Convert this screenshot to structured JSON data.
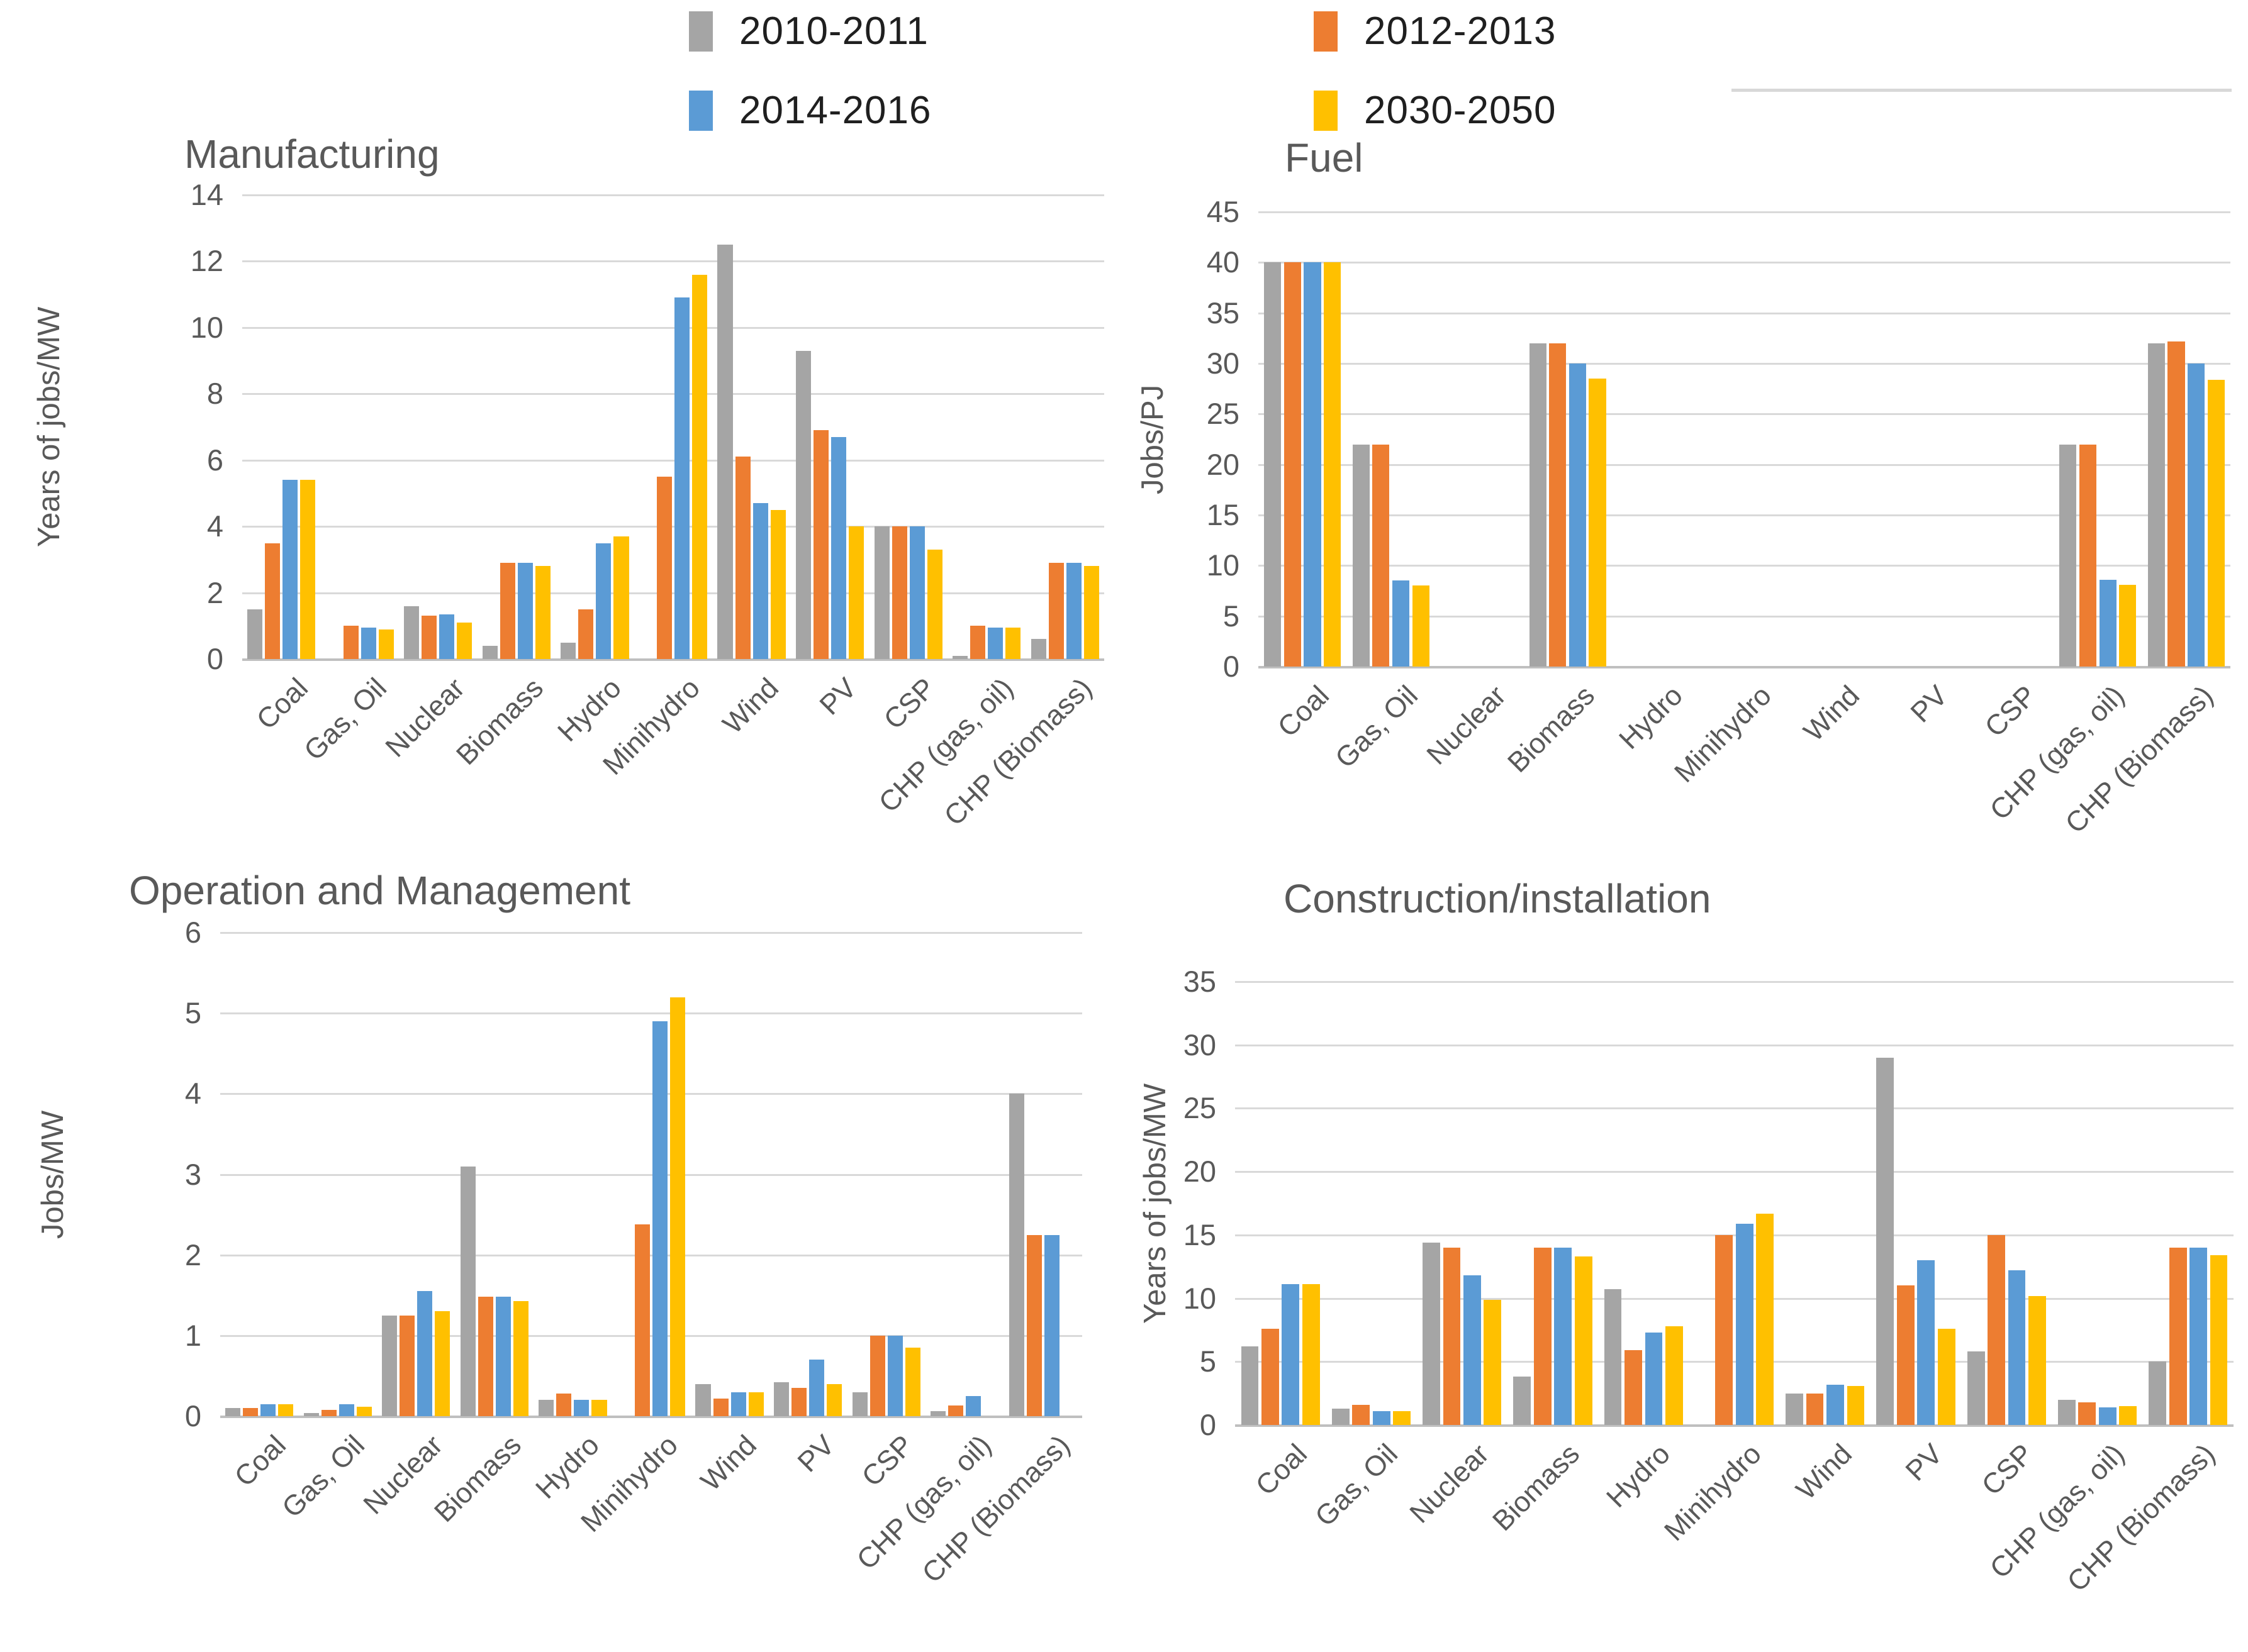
{
  "legend": {
    "items": [
      {
        "label": "2010-2011",
        "color": "#a5a5a5"
      },
      {
        "label": "2012-2013",
        "color": "#ed7d31"
      },
      {
        "label": "2014-2016",
        "color": "#5b9bd5"
      },
      {
        "label": "2030-2050",
        "color": "#ffc000"
      }
    ]
  },
  "chart_data": [
    {
      "type": "bar",
      "title": "Manufacturing",
      "ylabel": "Years of jobs/MW",
      "ylim": [
        0,
        14
      ],
      "ytick_step": 2,
      "grid": true,
      "legend_position": "top",
      "categories": [
        "Coal",
        "Gas, Oil",
        "Nuclear",
        "Biomass",
        "Hydro",
        "Minihydro",
        "Wind",
        "PV",
        "CSP",
        "CHP (gas, oil)",
        "CHP (Biomass)"
      ],
      "series": [
        {
          "name": "2010-2011",
          "color": "#a5a5a5",
          "values": [
            1.5,
            0,
            1.6,
            0.4,
            0.5,
            0,
            12.5,
            9.3,
            4.0,
            0.1,
            0.6
          ]
        },
        {
          "name": "2012-2013",
          "color": "#ed7d31",
          "values": [
            3.5,
            1.0,
            1.3,
            2.9,
            1.5,
            5.5,
            6.1,
            6.9,
            4.0,
            1.0,
            2.9
          ]
        },
        {
          "name": "2014-2016",
          "color": "#5b9bd5",
          "values": [
            5.4,
            0.95,
            1.35,
            2.9,
            3.5,
            10.9,
            4.7,
            6.7,
            4.0,
            0.95,
            2.9
          ]
        },
        {
          "name": "2030-2050",
          "color": "#ffc000",
          "values": [
            5.4,
            0.9,
            1.1,
            2.8,
            3.7,
            11.6,
            4.5,
            4.0,
            3.3,
            0.95,
            2.8
          ]
        }
      ]
    },
    {
      "type": "bar",
      "title": "Fuel",
      "ylabel": "Jobs/PJ",
      "ylim": [
        0,
        45
      ],
      "ytick_step": 5,
      "grid": true,
      "legend_position": "top",
      "categories": [
        "Coal",
        "Gas, Oil",
        "Nuclear",
        "Biomass",
        "Hydro",
        "Minihydro",
        "Wind",
        "PV",
        "CSP",
        "CHP (gas, oil)",
        "CHP (Biomass)"
      ],
      "series": [
        {
          "name": "2010-2011",
          "color": "#a5a5a5",
          "values": [
            40,
            22,
            0,
            32,
            0,
            0,
            0,
            0,
            0,
            22,
            32
          ]
        },
        {
          "name": "2012-2013",
          "color": "#ed7d31",
          "values": [
            40,
            22,
            0,
            32,
            0,
            0,
            0,
            0,
            0,
            22,
            32.2
          ]
        },
        {
          "name": "2014-2016",
          "color": "#5b9bd5",
          "values": [
            40,
            8.5,
            0,
            30,
            0,
            0,
            0,
            0,
            0,
            8.6,
            30
          ]
        },
        {
          "name": "2030-2050",
          "color": "#ffc000",
          "values": [
            40,
            8,
            0,
            28.5,
            0,
            0,
            0,
            0,
            0,
            8.1,
            28.4
          ]
        }
      ]
    },
    {
      "type": "bar",
      "title": "Operation and Management",
      "ylabel": "Jobs/MW",
      "ylim": [
        0,
        6
      ],
      "ytick_step": 1,
      "grid": true,
      "legend_position": "top",
      "categories": [
        "Coal",
        "Gas, Oil",
        "Nuclear",
        "Biomass",
        "Hydro",
        "Minihydro",
        "Wind",
        "PV",
        "CSP",
        "CHP (gas, oil)",
        "CHP (Biomass)"
      ],
      "series": [
        {
          "name": "2010-2011",
          "color": "#a5a5a5",
          "values": [
            0.1,
            0.04,
            1.25,
            3.1,
            0.2,
            0,
            0.4,
            0.42,
            0.3,
            0.06,
            4.0
          ]
        },
        {
          "name": "2012-2013",
          "color": "#ed7d31",
          "values": [
            0.1,
            0.08,
            1.25,
            1.48,
            0.28,
            2.38,
            0.22,
            0.35,
            1.0,
            0.13,
            2.25
          ]
        },
        {
          "name": "2014-2016",
          "color": "#5b9bd5",
          "values": [
            0.15,
            0.15,
            1.55,
            1.48,
            0.2,
            4.9,
            0.3,
            0.7,
            1.0,
            0.25,
            2.25
          ]
        },
        {
          "name": "2030-2050",
          "color": "#ffc000",
          "values": [
            0.15,
            0.12,
            1.3,
            1.43,
            0.2,
            5.2,
            0.3,
            0.4,
            0.85,
            0,
            0
          ]
        }
      ]
    },
    {
      "type": "bar",
      "title": "Construction/installation",
      "ylabel": "Years of jobs/MW",
      "ylim": [
        0,
        35
      ],
      "ytick_step": 5,
      "grid": true,
      "legend_position": "top",
      "categories": [
        "Coal",
        "Gas, Oil",
        "Nuclear",
        "Biomass",
        "Hydro",
        "Minihydro",
        "Wind",
        "PV",
        "CSP",
        "CHP (gas, oil)",
        "CHP (Biomass)"
      ],
      "series": [
        {
          "name": "2010-2011",
          "color": "#a5a5a5",
          "values": [
            6.2,
            1.3,
            14.4,
            3.8,
            10.7,
            0,
            2.5,
            29,
            5.8,
            2.0,
            5.0
          ]
        },
        {
          "name": "2012-2013",
          "color": "#ed7d31",
          "values": [
            7.6,
            1.6,
            14.0,
            14.0,
            5.9,
            15.0,
            2.5,
            11,
            15.0,
            1.8,
            14.0
          ]
        },
        {
          "name": "2014-2016",
          "color": "#5b9bd5",
          "values": [
            11.1,
            1.1,
            11.8,
            14.0,
            7.3,
            15.9,
            3.2,
            13,
            12.2,
            1.4,
            14.0
          ]
        },
        {
          "name": "2030-2050",
          "color": "#ffc000",
          "values": [
            11.1,
            1.1,
            9.9,
            13.3,
            7.8,
            16.7,
            3.1,
            7.6,
            10.2,
            1.5,
            13.4
          ]
        }
      ]
    }
  ]
}
